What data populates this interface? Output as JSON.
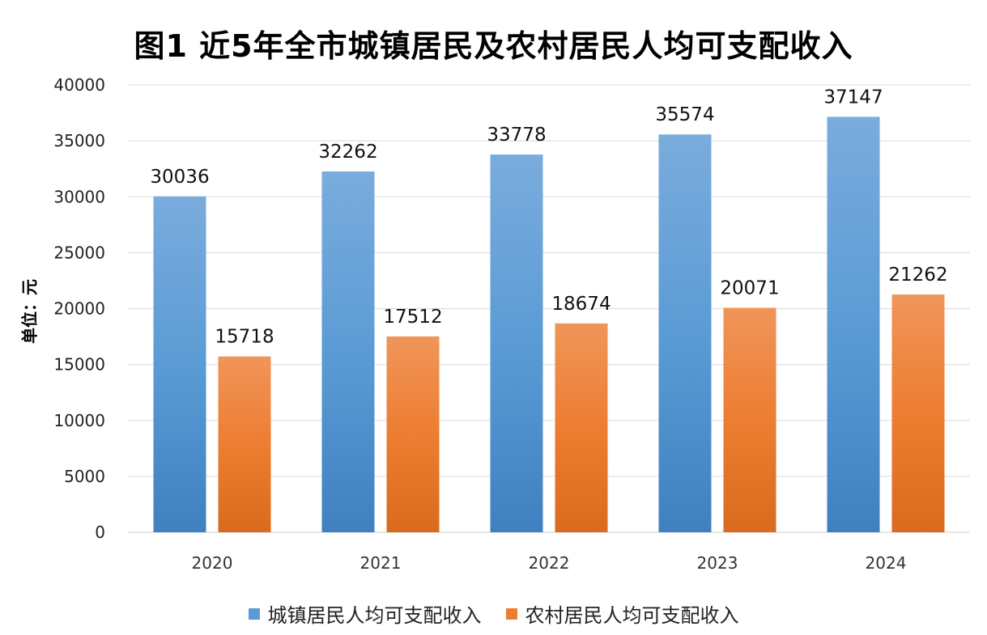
{
  "chart_data": {
    "type": "bar",
    "title": "图1 近5年全市城镇居民及农村居民人均可支配收入",
    "ylabel": "单位：元",
    "xlabel": "",
    "categories": [
      "2020",
      "2021",
      "2022",
      "2023",
      "2024"
    ],
    "ylim": [
      0,
      40000
    ],
    "yticks": [
      0,
      5000,
      10000,
      15000,
      20000,
      25000,
      30000,
      35000,
      40000
    ],
    "grid": true,
    "legend_position": "bottom",
    "series": [
      {
        "name": "城镇居民人均可支配收入",
        "values": [
          30036,
          32262,
          33778,
          35574,
          37147
        ],
        "color": "#5B9BD5"
      },
      {
        "name": "农村居民人均可支配收入",
        "values": [
          15718,
          17512,
          18674,
          20071,
          21262
        ],
        "color": "#ED7D31"
      }
    ]
  }
}
